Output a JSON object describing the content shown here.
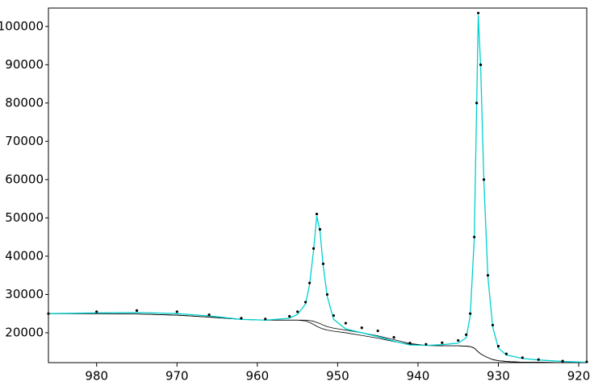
{
  "chart_data": {
    "type": "line",
    "x": [
      986,
      980,
      975,
      970,
      966,
      962,
      959,
      956,
      955,
      954,
      953.5,
      953,
      952.6,
      952.2,
      951.8,
      951.3,
      950.5,
      949,
      947,
      945,
      943,
      941,
      939,
      937,
      935,
      934,
      933.5,
      933,
      932.7,
      932.5,
      932.2,
      931.8,
      931.3,
      930.7,
      930,
      929,
      927,
      925,
      922,
      919
    ],
    "series": [
      {
        "mode": "lines",
        "color": "#000000",
        "values": [
          25000,
          25000,
          24900,
          24600,
          24100,
          23500,
          23300,
          23300,
          23300,
          23100,
          22700,
          22200,
          21700,
          21300,
          21000,
          20700,
          20400,
          20000,
          19300,
          18600,
          17700,
          17000,
          16700,
          16600,
          16600,
          16500,
          16400,
          16000,
          15400,
          15000,
          14500,
          14000,
          13500,
          13000,
          12700,
          12500,
          12300,
          12300,
          12200,
          12200
        ]
      },
      {
        "mode": "lines",
        "color": "#000000",
        "values": [
          25000,
          25000,
          24900,
          24600,
          24100,
          23500,
          23300,
          23300,
          23300,
          23300,
          23200,
          23000,
          22700,
          22400,
          22000,
          21600,
          21200,
          20700,
          20000,
          19200,
          18200,
          17200,
          16700,
          16600,
          16600,
          16500,
          16400,
          16000,
          15400,
          15000,
          14500,
          14000,
          13500,
          13000,
          12700,
          12500,
          12300,
          12300,
          12200,
          12200
        ]
      },
      {
        "mode": "lines",
        "color": "#00d0d0",
        "values": [
          25000,
          25200,
          25300,
          25000,
          24400,
          23500,
          23300,
          23800,
          24800,
          27500,
          32500,
          41500,
          50500,
          46500,
          37500,
          29500,
          23500,
          21000,
          20000,
          19000,
          17800,
          16800,
          16700,
          16900,
          17300,
          18700,
          24500,
          44500,
          79500,
          103000,
          89500,
          59500,
          34500,
          21500,
          16000,
          14200,
          13300,
          12900,
          12500,
          12300
        ]
      },
      {
        "mode": "markers",
        "color": "#000000",
        "values": [
          25000,
          25500,
          25800,
          25500,
          24700,
          23800,
          23600,
          24300,
          25500,
          28000,
          33000,
          42000,
          51000,
          47000,
          38000,
          30000,
          24500,
          22500,
          21300,
          20500,
          18800,
          17300,
          17000,
          17400,
          18000,
          19500,
          25000,
          45000,
          80000,
          103500,
          90000,
          60000,
          35000,
          22000,
          16500,
          14500,
          13500,
          13000,
          12600,
          12400
        ]
      }
    ],
    "xlim": [
      986,
      919
    ],
    "ylim": [
      12200,
      104800
    ],
    "xticks": [
      980,
      970,
      960,
      950,
      940,
      930,
      920
    ],
    "yticks": [
      20000,
      30000,
      40000,
      50000,
      60000,
      70000,
      80000,
      90000,
      100000
    ]
  }
}
